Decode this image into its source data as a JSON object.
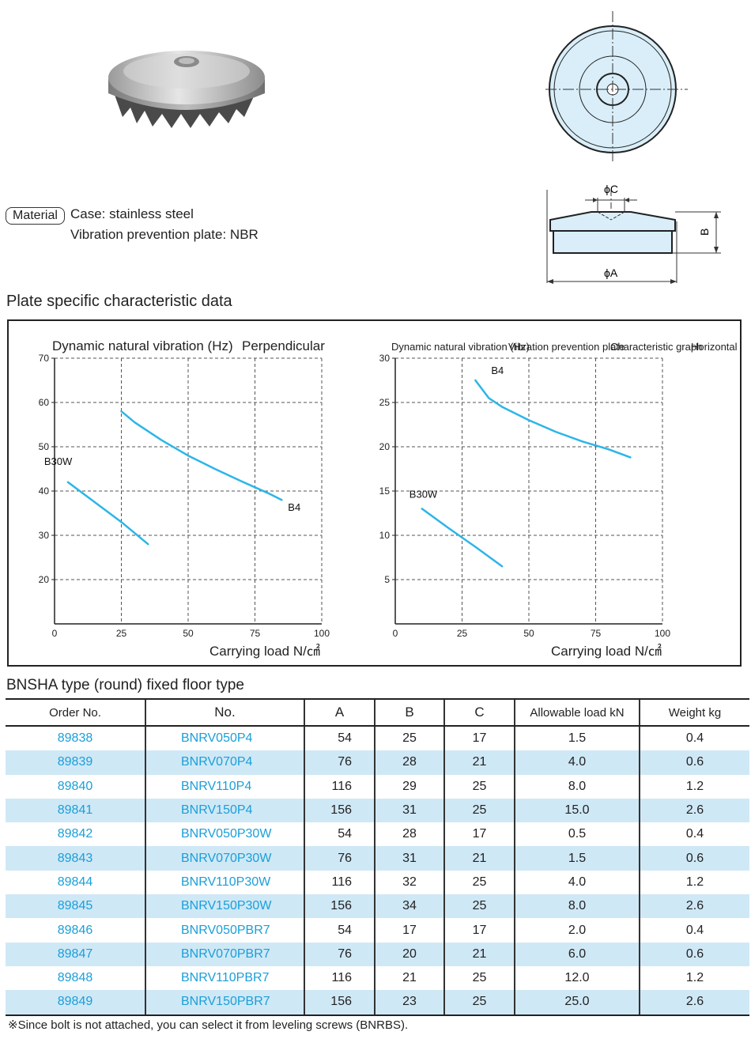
{
  "material": {
    "tag": "Material",
    "case": "Case: stainless steel",
    "plate": "Vibration prevention plate: NBR"
  },
  "drawing": {
    "dim_c": "ϕC",
    "dim_b": "B",
    "dim_a": "ϕA"
  },
  "plate_section_title": "Plate specific characteristic data",
  "chart_data": [
    {
      "type": "line",
      "title_parts": [
        "Dynamic natural vibration (Hz)",
        "Perpendicular"
      ],
      "xlabel": "Carrying load N/㎠",
      "xlim": [
        0,
        100
      ],
      "ylim": [
        10,
        70
      ],
      "x_ticks": [
        "0",
        "25",
        "50",
        "75",
        "100"
      ],
      "y_ticks": [
        "20",
        "30",
        "40",
        "50",
        "60",
        "70"
      ],
      "grid": true,
      "series": [
        {
          "name": "B4",
          "x": [
            25,
            30,
            40,
            50,
            60,
            70,
            80,
            85
          ],
          "y": [
            58,
            55.5,
            51.5,
            48,
            45,
            42.2,
            39.5,
            38
          ]
        },
        {
          "name": "B30W",
          "x": [
            5,
            15,
            25,
            35
          ],
          "y": [
            42,
            37.5,
            33,
            28
          ]
        }
      ]
    },
    {
      "type": "line",
      "title_parts": [
        "Dynamic natural vibration (Hz)",
        "Vibration prevention plate",
        "Characteristic graph",
        "Horizontal"
      ],
      "xlabel": "Carrying load N/㎠",
      "xlim": [
        0,
        100
      ],
      "ylim": [
        0,
        30
      ],
      "x_ticks": [
        "0",
        "25",
        "50",
        "75",
        "100"
      ],
      "y_ticks": [
        "5",
        "10",
        "15",
        "20",
        "25",
        "30"
      ],
      "grid": true,
      "series": [
        {
          "name": "B4",
          "x": [
            30,
            35,
            40,
            50,
            60,
            70,
            80,
            88
          ],
          "y": [
            27.5,
            25.5,
            24.5,
            23,
            21.7,
            20.6,
            19.7,
            18.8
          ]
        },
        {
          "name": "B30W",
          "x": [
            10,
            20,
            30,
            40
          ],
          "y": [
            13,
            10.8,
            8.7,
            6.5
          ]
        }
      ]
    }
  ],
  "table_title": "BNSHA type (round) fixed floor type",
  "table": {
    "headers": [
      "Order No.",
      "No.",
      "A",
      "B",
      "C",
      "Allowable load kN",
      "Weight kg"
    ],
    "rows": [
      [
        "89838",
        "BNRV050P4",
        "54",
        "25",
        "17",
        "1.5",
        "0.4"
      ],
      [
        "89839",
        "BNRV070P4",
        "76",
        "28",
        "21",
        "4.0",
        "0.6"
      ],
      [
        "89840",
        "BNRV110P4",
        "116",
        "29",
        "25",
        "8.0",
        "1.2"
      ],
      [
        "89841",
        "BNRV150P4",
        "156",
        "31",
        "25",
        "15.0",
        "2.6"
      ],
      [
        "89842",
        "BNRV050P30W",
        "54",
        "28",
        "17",
        "0.5",
        "0.4"
      ],
      [
        "89843",
        "BNRV070P30W",
        "76",
        "31",
        "21",
        "1.5",
        "0.6"
      ],
      [
        "89844",
        "BNRV110P30W",
        "116",
        "32",
        "25",
        "4.0",
        "1.2"
      ],
      [
        "89845",
        "BNRV150P30W",
        "156",
        "34",
        "25",
        "8.0",
        "2.6"
      ],
      [
        "89846",
        "BNRV050PBR7",
        "54",
        "17",
        "17",
        "2.0",
        "0.4"
      ],
      [
        "89847",
        "BNRV070PBR7",
        "76",
        "20",
        "21",
        "6.0",
        "0.6"
      ],
      [
        "89848",
        "BNRV110PBR7",
        "116",
        "21",
        "25",
        "12.0",
        "1.2"
      ],
      [
        "89849",
        "BNRV150PBR7",
        "156",
        "23",
        "25",
        "25.0",
        "2.6"
      ]
    ]
  },
  "footnote": "※Since bolt is not attached, you can select it from leveling screws (BNRBS).",
  "colors": {
    "curve": "#2cb5e8",
    "link_text": "#1a9fd9",
    "row_alt": "#cfe8f6",
    "drawing_fill": "#d9eef8"
  }
}
